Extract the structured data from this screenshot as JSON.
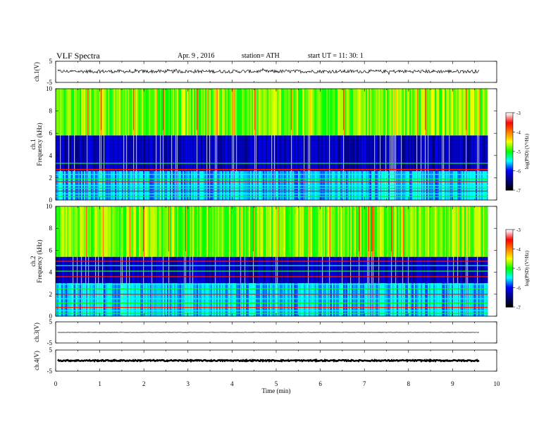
{
  "header": {
    "title": "VLF  Spectra",
    "date": "Apr. 9  , 2016",
    "station": "station= ATH",
    "start_ut": "start  UT  =   11: 30: 1"
  },
  "chart_data": {
    "type": "multi-panel time series and spectrogram",
    "xlabel": "Time  (min)",
    "xlim": [
      0,
      10
    ],
    "xticks": [
      "0",
      "1",
      "2",
      "3",
      "4",
      "5",
      "6",
      "7",
      "8",
      "9",
      "10"
    ],
    "data_end_min": 9.8,
    "panels": [
      {
        "id": "ch1_waveform",
        "type": "line",
        "ylabel": "ch.1(V)",
        "ylim": [
          -5,
          5
        ],
        "yticks": [
          "5",
          "-5"
        ],
        "baseline": 0.2,
        "noise_amplitude": 0.8
      },
      {
        "id": "ch1_spectrogram",
        "type": "heatmap",
        "ylabel": "Frequency  (kHz)",
        "ylabel2": "ch.1",
        "ylim": [
          0,
          10
        ],
        "yticks": [
          "0",
          "2",
          "4",
          "6",
          "8",
          "10"
        ],
        "colorbar": {
          "label": "log(PSD) (V²/Hz)",
          "range": [
            -7,
            -3
          ],
          "ticks": [
            "-3",
            "-4",
            "-5",
            "-6",
            "-7"
          ]
        },
        "quiet_band_khz": [
          2.6,
          5.8
        ],
        "lines_khz": [
          0.3,
          0.55,
          0.8,
          1.05,
          1.3,
          1.65,
          1.9,
          2.3,
          2.75,
          3.3
        ]
      },
      {
        "id": "ch2_spectrogram",
        "type": "heatmap",
        "ylabel": "Frequency  (kHz)",
        "ylabel2": "ch.2",
        "ylim": [
          0,
          10
        ],
        "yticks": [
          "0",
          "2",
          "4",
          "6",
          "8",
          "10"
        ],
        "colorbar": {
          "label": "log(PSD) (V²/Hz)",
          "range": [
            -7,
            -3
          ],
          "ticks": [
            "-3",
            "-4",
            "-5",
            "-6",
            "-7"
          ]
        },
        "quiet_band_khz": [
          3.0,
          5.4
        ],
        "lines_khz": [
          0.25,
          0.5,
          0.8,
          1.2,
          1.6,
          2.0,
          2.5,
          2.9,
          3.6,
          4.1,
          4.6,
          5.0
        ]
      },
      {
        "id": "ch3_waveform",
        "type": "line",
        "ylabel": "ch.3(V)",
        "ylim": [
          -5,
          5
        ],
        "yticks": [
          "5",
          "-5"
        ],
        "baseline": 0,
        "noise_amplitude": 0.05
      },
      {
        "id": "ch4_waveform",
        "type": "line",
        "ylabel": "ch.4(V)",
        "ylim": [
          -5,
          5
        ],
        "yticks": [
          "5",
          "-5"
        ],
        "baseline": 0,
        "noise_amplitude": 0.3
      }
    ],
    "colors": {
      "colormap": [
        "#000000",
        "#000080",
        "#0000ff",
        "#00ffff",
        "#00ff00",
        "#ffff00",
        "#ff8000",
        "#ff0000",
        "#ffffff"
      ]
    }
  }
}
